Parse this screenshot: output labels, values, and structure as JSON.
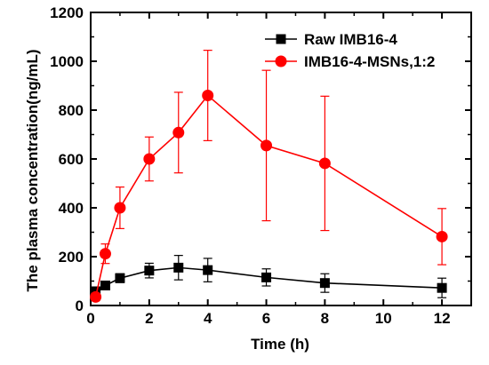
{
  "chart_data": {
    "type": "line",
    "xlabel": "Time (h)",
    "ylabel": "The plasma concentration(ng/mL)",
    "xlim": [
      0,
      13
    ],
    "ylim": [
      0,
      1200
    ],
    "x_ticks": [
      0,
      2,
      4,
      6,
      8,
      10,
      12
    ],
    "y_ticks": [
      0,
      200,
      400,
      600,
      800,
      1000,
      1200
    ],
    "legend_position": "top-right",
    "series": [
      {
        "name": "Raw IMB16-4",
        "color": "#000000",
        "marker": "square",
        "x": [
          0.17,
          0.5,
          1,
          2,
          3,
          4,
          6,
          8,
          12
        ],
        "y": [
          58,
          82,
          112,
          143,
          155,
          145,
          115,
          92,
          72
        ],
        "error": [
          18,
          15,
          18,
          30,
          50,
          48,
          35,
          38,
          40
        ]
      },
      {
        "name": "IMB16-4-MSNs,1:2",
        "color": "#ff0000",
        "marker": "circle",
        "x": [
          0.17,
          0.5,
          1,
          2,
          3,
          4,
          6,
          8,
          12
        ],
        "y": [
          35,
          212,
          400,
          600,
          708,
          860,
          655,
          582,
          282
        ],
        "error": [
          15,
          40,
          85,
          90,
          165,
          185,
          308,
          275,
          115
        ]
      }
    ]
  }
}
